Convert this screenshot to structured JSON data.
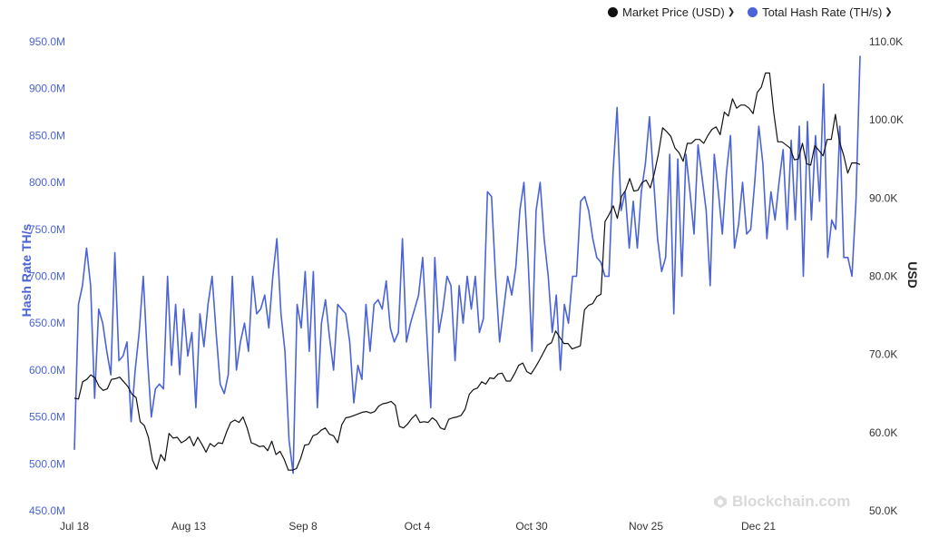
{
  "legend": {
    "price_label": "Market Price (USD)",
    "hash_label": "Total Hash Rate (TH/s)",
    "price_color": "#111111",
    "hash_color": "#4a63d8"
  },
  "axes": {
    "left_title": "Hash Rate TH/s",
    "right_title": "USD"
  },
  "watermark": "Blockchain.com",
  "chart_data": {
    "type": "line",
    "x_labels": [
      "Jul 18",
      "Aug 13",
      "Sep 8",
      "Oct 4",
      "Oct 30",
      "Nov 25",
      "Dec 21"
    ],
    "x_range": [
      "Jul 18",
      "Jan 13"
    ],
    "left_axis": {
      "label": "Hash Rate TH/s",
      "unit": "TH/s",
      "ylim": [
        450000000,
        950000000
      ],
      "ticks": [
        "450.0M",
        "500.0M",
        "550.0M",
        "600.0M",
        "650.0M",
        "700.0M",
        "750.0M",
        "800.0M",
        "850.0M",
        "900.0M",
        "950.0M"
      ]
    },
    "right_axis": {
      "label": "USD",
      "ylim": [
        50000,
        110000
      ],
      "ticks": [
        "50.0K",
        "60.0K",
        "70.0K",
        "80.0K",
        "90.0K",
        "100.0K",
        "110.0K"
      ]
    },
    "grid": false,
    "legend_position": "top-right",
    "series": [
      {
        "name": "Total Hash Rate (TH/s)",
        "axis": "left",
        "color": "#4a63d8",
        "values": [
          515,
          670,
          690,
          730,
          690,
          570,
          665,
          650,
          620,
          595,
          725,
          610,
          615,
          630,
          545,
          600,
          640,
          700,
          615,
          550,
          580,
          585,
          580,
          700,
          605,
          670,
          595,
          665,
          615,
          640,
          560,
          660,
          625,
          670,
          700,
          640,
          585,
          575,
          595,
          700,
          600,
          630,
          650,
          620,
          700,
          660,
          665,
          680,
          645,
          700,
          740,
          660,
          620,
          525,
          490,
          670,
          645,
          705,
          620,
          705,
          560,
          650,
          675,
          635,
          600,
          670,
          665,
          660,
          630,
          565,
          605,
          590,
          670,
          620,
          670,
          675,
          665,
          695,
          645,
          630,
          640,
          740,
          630,
          650,
          665,
          680,
          720,
          640,
          560,
          720,
          640,
          665,
          700,
          690,
          610,
          690,
          650,
          700,
          665,
          700,
          640,
          655,
          790,
          785,
          700,
          630,
          665,
          700,
          680,
          710,
          770,
          800,
          720,
          620,
          770,
          800,
          740,
          700,
          640,
          680,
          600,
          670,
          650,
          700,
          700,
          780,
          785,
          770,
          740,
          720,
          715,
          700,
          700,
          810,
          880,
          770,
          790,
          730,
          780,
          730,
          790,
          820,
          870,
          805,
          740,
          705,
          720,
          830,
          660,
          825,
          700,
          830,
          790,
          745,
          840,
          805,
          770,
          690,
          830,
          790,
          745,
          810,
          850,
          730,
          755,
          800,
          745,
          750,
          800,
          860,
          820,
          740,
          790,
          760,
          800,
          835,
          750,
          845,
          760,
          860,
          700,
          865,
          760,
          850,
          780,
          905,
          720,
          760,
          750,
          860,
          720,
          720,
          700,
          780,
          935
        ]
      },
      {
        "name": "Market Price (USD)",
        "axis": "right",
        "color": "#111111",
        "values": [
          64.4,
          64.3,
          66.5,
          66.8,
          67.4,
          67.0,
          65.9,
          65.4,
          65.6,
          66.8,
          66.9,
          67.1,
          66.5,
          65.9,
          64.9,
          64.5,
          61.4,
          60.9,
          59.4,
          56.5,
          55.3,
          57.2,
          56.4,
          59.9,
          59.3,
          59.4,
          58.7,
          59.0,
          59.5,
          58.3,
          59.4,
          58.5,
          57.5,
          58.6,
          58.2,
          58.7,
          58.6,
          60.1,
          61.3,
          61.6,
          61.3,
          62.0,
          60.6,
          58.7,
          58.5,
          58.2,
          58.3,
          57.7,
          58.9,
          57.2,
          57.6,
          56.6,
          55.2,
          55.2,
          55.4,
          56.7,
          58.4,
          58.5,
          59.6,
          59.8,
          60.3,
          60.6,
          59.8,
          59.6,
          58.7,
          61.0,
          61.9,
          62.0,
          62.2,
          62.4,
          62.6,
          62.7,
          62.5,
          62.7,
          63.4,
          63.7,
          63.8,
          64.0,
          63.5,
          60.8,
          60.6,
          61.1,
          61.8,
          62.3,
          61.3,
          61.4,
          61.3,
          61.9,
          61.5,
          60.6,
          60.4,
          61.7,
          61.9,
          62.0,
          62.2,
          63.0,
          64.9,
          65.5,
          65.7,
          66.5,
          66.2,
          67.0,
          66.9,
          67.5,
          67.6,
          66.6,
          66.6,
          67.5,
          68.6,
          68.9,
          67.8,
          67.5,
          68.3,
          69.2,
          70.2,
          71.2,
          71.5,
          73.0,
          72.2,
          71.4,
          71.4,
          70.7,
          70.9,
          71.1,
          75.7,
          76.3,
          76.5,
          77.4,
          77.7,
          87.0,
          87.9,
          89.0,
          87.4,
          90.2,
          91.0,
          92.5,
          90.9,
          91.0,
          92.0,
          92.3,
          91.3,
          93.2,
          95.7,
          99.0,
          98.5,
          97.9,
          96.4,
          95.8,
          94.7,
          97.0,
          97.0,
          97.5,
          97.5,
          97.0,
          98.0,
          98.8,
          99.1,
          98.1,
          101.0,
          100.5,
          102.7,
          101.5,
          101.9,
          101.9,
          101.5,
          100.8,
          103.5,
          104.2,
          106.0,
          106.0,
          101.0,
          97.2,
          97.2,
          96.8,
          96.4,
          94.9,
          95.0,
          97.0,
          94.4,
          94.2,
          96.7,
          96.1,
          95.4,
          97.5,
          97.5,
          100.7,
          97.2,
          95.5,
          93.2,
          94.5,
          94.5,
          94.3
        ]
      }
    ]
  }
}
